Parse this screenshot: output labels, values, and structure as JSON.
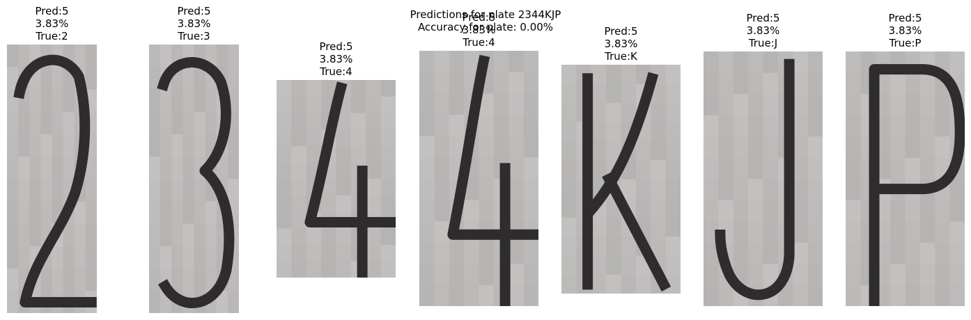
{
  "figure": {
    "title_line1": "Predictions for plate 2344KJP",
    "title_line2": "Accuracy for plate: 0.00%"
  },
  "chart_data": {
    "type": "table",
    "title": "Predictions for plate 2344KJP",
    "subtitle": "Accuracy for plate: 0.00%",
    "plate": "2344KJP",
    "accuracy": "0.00%",
    "predictions": [
      {
        "pred": "Pred:5",
        "conf": "3.83%",
        "true": "True:2",
        "glyph": "2"
      },
      {
        "pred": "Pred:5",
        "conf": "3.83%",
        "true": "True:3",
        "glyph": "3"
      },
      {
        "pred": "Pred:5",
        "conf": "3.83%",
        "true": "True:4",
        "glyph": "4"
      },
      {
        "pred": "Pred:5",
        "conf": "3.83%",
        "true": "True:4",
        "glyph": "4"
      },
      {
        "pred": "Pred:5",
        "conf": "3.83%",
        "true": "True:K",
        "glyph": "K"
      },
      {
        "pred": "Pred:5",
        "conf": "3.83%",
        "true": "True:J",
        "glyph": "J"
      },
      {
        "pred": "Pred:5",
        "conf": "3.83%",
        "true": "True:P",
        "glyph": "P"
      }
    ],
    "colors": {
      "crop_background": "#bcbab9",
      "ink": "#2e2c2d",
      "text": "#000000"
    }
  }
}
